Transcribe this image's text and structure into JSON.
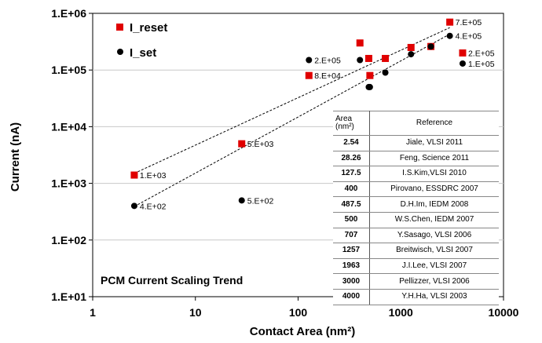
{
  "chart_data": {
    "type": "scatter",
    "xlabel": "Contact Area (nm²)",
    "ylabel": "Current (nA)",
    "xscale": "log",
    "yscale": "log",
    "xlim": [
      1,
      10000
    ],
    "ylim": [
      10,
      1000000
    ],
    "x_ticks": [
      1,
      10,
      100,
      1000,
      10000
    ],
    "x_tick_labels": [
      "1",
      "10",
      "100",
      "1000",
      "10000"
    ],
    "y_ticks": [
      10,
      100,
      1000,
      10000,
      100000,
      1000000
    ],
    "y_tick_labels": [
      "1.E+01",
      "1.E+02",
      "1.E+03",
      "1.E+04",
      "1.E+05",
      "1.E+06"
    ],
    "legend_position": "top-left",
    "series": [
      {
        "name": "I_reset",
        "color": "#e00000",
        "marker": "square",
        "x": [
          2.54,
          28.26,
          127.5,
          400,
          487.5,
          500,
          707,
          1257,
          1963,
          3000,
          4000
        ],
        "y": [
          1400,
          5000,
          80000,
          300000,
          160000,
          80000,
          160000,
          250000,
          260000,
          700000,
          200000
        ]
      },
      {
        "name": "I_set",
        "color": "#000000",
        "marker": "circle",
        "x": [
          2.54,
          28.26,
          127.5,
          400,
          487.5,
          500,
          707,
          1257,
          1963,
          3000,
          4000
        ],
        "y": [
          400,
          500,
          150000,
          150000,
          50000,
          50000,
          90000,
          190000,
          260000,
          400000,
          130000
        ]
      }
    ],
    "trendlines": [
      {
        "series": "I_reset",
        "style": "dashed",
        "x": [
          2.54,
          3000
        ],
        "y": [
          1500,
          560000
        ]
      },
      {
        "series": "I_set",
        "style": "dashed",
        "x": [
          2.54,
          3000
        ],
        "y": [
          390,
          430000
        ]
      }
    ],
    "data_labels": [
      {
        "text": "1.E+03",
        "x": 2.54,
        "y": 1400
      },
      {
        "text": "4.E+02",
        "x": 2.54,
        "y": 400
      },
      {
        "text": "5.E+03",
        "x": 28.26,
        "y": 5000
      },
      {
        "text": "5.E+02",
        "x": 28.26,
        "y": 500
      },
      {
        "text": "2.E+05",
        "x": 127.5,
        "y": 150000
      },
      {
        "text": "8.E+04",
        "x": 127.5,
        "y": 80000
      },
      {
        "text": "7.E+05",
        "x": 3000,
        "y": 700000
      },
      {
        "text": "4.E+05",
        "x": 3000,
        "y": 400000
      },
      {
        "text": "2.E+05",
        "x": 4000,
        "y": 200000
      },
      {
        "text": "1.E+05",
        "x": 4000,
        "y": 130000
      }
    ],
    "annotation": "PCM Current Scaling Trend",
    "table": {
      "headers": [
        "Area (nm²)",
        "Reference"
      ],
      "rows": [
        [
          "2.54",
          "Jiale, VLSI 2011"
        ],
        [
          "28.26",
          "Feng, Science 2011"
        ],
        [
          "127.5",
          "I.S.Kim,VLSI 2010"
        ],
        [
          "400",
          "Pirovano, ESSDRC 2007"
        ],
        [
          "487.5",
          "D.H.Im, IEDM 2008"
        ],
        [
          "500",
          "W.S.Chen, IEDM 2007"
        ],
        [
          "707",
          "Y.Sasago, VLSI 2006"
        ],
        [
          "1257",
          "Breitwisch, VLSI 2007"
        ],
        [
          "1963",
          "J.I.Lee,  VLSI 2007"
        ],
        [
          "3000",
          "Pellizzer, VLSI 2006"
        ],
        [
          "4000",
          "Y.H.Ha, VLSI 2003"
        ]
      ]
    }
  }
}
